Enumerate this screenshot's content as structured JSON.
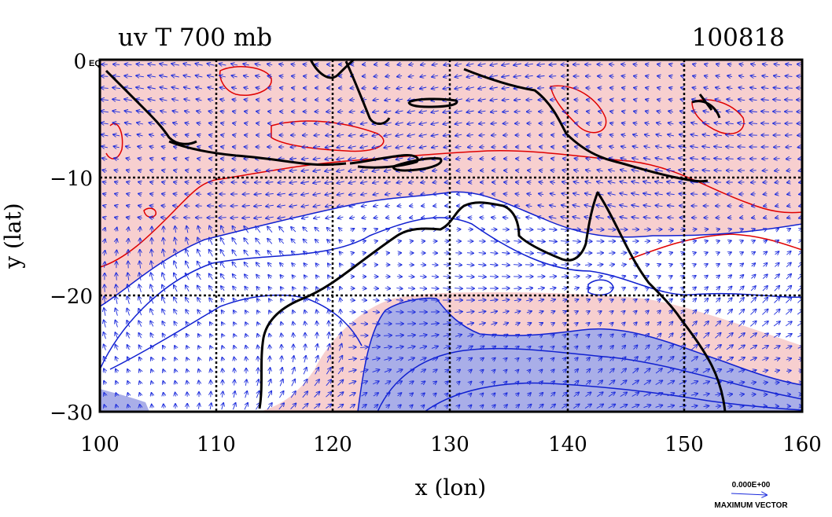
{
  "title_left": "uv T 700 mb",
  "title_right": "100818",
  "xlabel": "x (lon)",
  "ylabel": "y (lat)",
  "x_ticks": [
    "100",
    "110",
    "120",
    "130",
    "140",
    "150",
    "160"
  ],
  "y_ticks": [
    "0",
    "−10",
    "−20",
    "−30"
  ],
  "corner_label": "EQ",
  "vector_key": {
    "value": "0.000E+00",
    "label": "MAXIMUM VECTOR"
  },
  "colors": {
    "warm_fill": "#f7cfcf",
    "cold_fill": "#a9aee8",
    "warm_contour": "#e00000",
    "cold_contour": "#1020d0",
    "vectors": "#1a2adc",
    "coast": "#000000",
    "grid": "#000000"
  },
  "map": {
    "lon_range": [
      100,
      160
    ],
    "lat_range": [
      -30,
      0
    ],
    "grid_lon": [
      110,
      120,
      130,
      140,
      150
    ],
    "grid_lat": [
      -10,
      -20
    ]
  }
}
